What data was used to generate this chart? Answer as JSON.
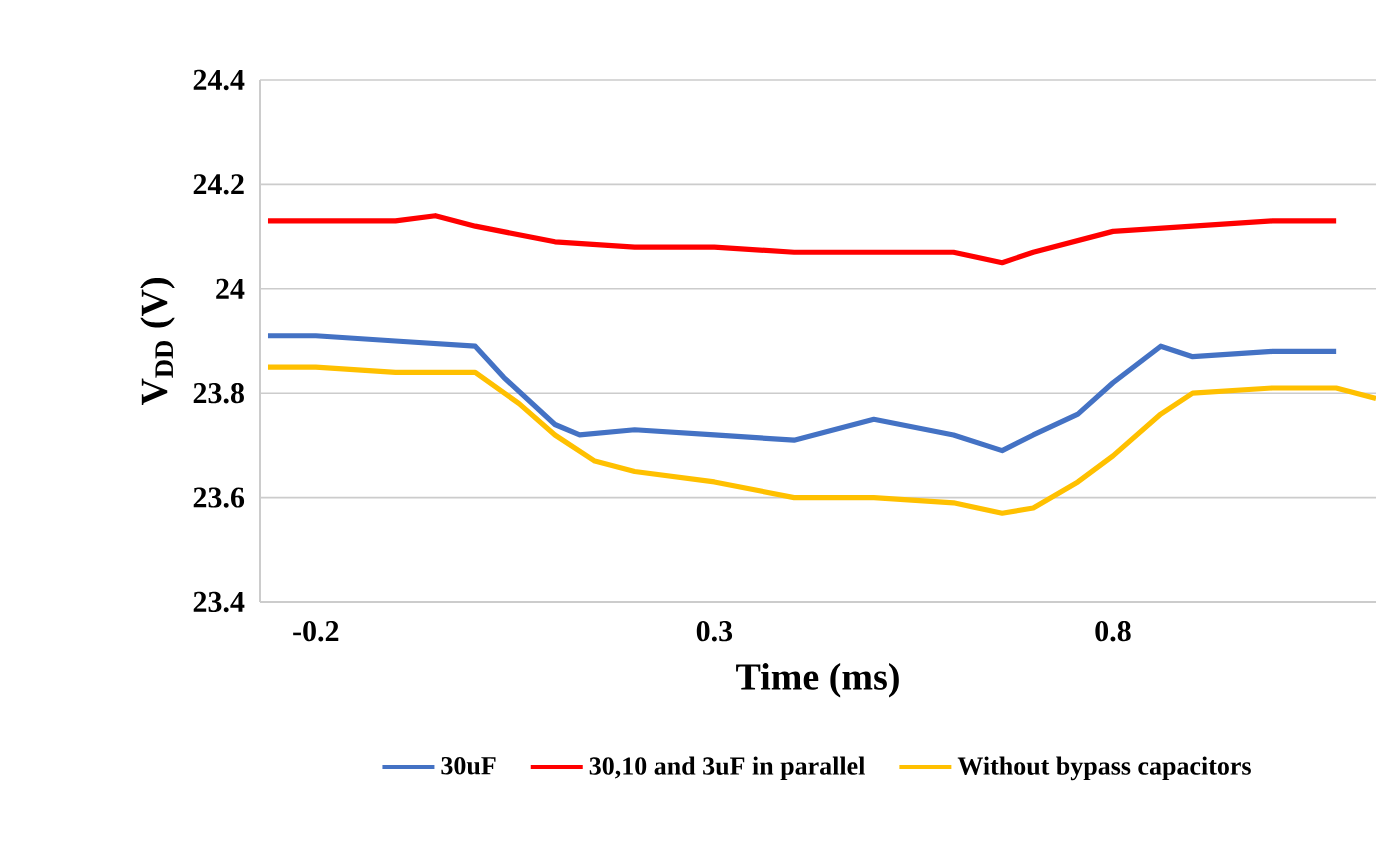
{
  "chart_data": {
    "type": "line",
    "xlabel": "Time (ms)",
    "ylabel": "V$_{DD}$ (V)",
    "xlim": [
      -0.27,
      1.13
    ],
    "ylim": [
      23.4,
      24.4
    ],
    "xticks": [
      -0.2,
      0.3,
      0.8
    ],
    "yticks": [
      23.4,
      23.6,
      23.8,
      24,
      24.2,
      24.4
    ],
    "grid": "y",
    "legend": "bottom",
    "marker": "none",
    "line_style": "solid",
    "series": [
      {
        "name": "30uF",
        "color": "#4472c4",
        "x": [
          -0.26,
          -0.2,
          -0.1,
          0,
          0.036,
          0.1,
          0.131,
          0.2,
          0.3,
          0.4,
          0.5,
          0.6,
          0.661,
          0.7,
          0.756,
          0.8,
          0.86,
          0.9,
          1.0,
          1.08
        ],
        "values": [
          23.91,
          23.91,
          23.9,
          23.89,
          23.83,
          23.74,
          23.72,
          23.73,
          23.72,
          23.71,
          23.75,
          23.72,
          23.69,
          23.72,
          23.76,
          23.82,
          23.89,
          23.87,
          23.88,
          23.88
        ]
      },
      {
        "name": "30,10 and 3uF in parallel",
        "color": "#ff0000",
        "x": [
          -0.26,
          -0.2,
          -0.1,
          -0.05,
          0,
          0.1,
          0.2,
          0.3,
          0.4,
          0.5,
          0.6,
          0.661,
          0.7,
          0.8,
          0.9,
          1.0,
          1.08
        ],
        "values": [
          24.13,
          24.13,
          24.13,
          24.14,
          24.12,
          24.09,
          24.08,
          24.08,
          24.07,
          24.07,
          24.07,
          24.05,
          24.07,
          24.11,
          24.12,
          24.13,
          24.13
        ]
      },
      {
        "name": "Without bypass capacitors",
        "color": "#ffc000",
        "x": [
          -0.26,
          -0.2,
          -0.1,
          0,
          0.055,
          0.1,
          0.15,
          0.2,
          0.3,
          0.4,
          0.5,
          0.6,
          0.661,
          0.7,
          0.756,
          0.8,
          0.86,
          0.9,
          1.0,
          1.08,
          1.13
        ],
        "values": [
          23.85,
          23.85,
          23.84,
          23.84,
          23.78,
          23.72,
          23.67,
          23.65,
          23.63,
          23.6,
          23.6,
          23.59,
          23.57,
          23.58,
          23.63,
          23.68,
          23.76,
          23.8,
          23.81,
          23.81,
          23.79
        ]
      }
    ]
  }
}
